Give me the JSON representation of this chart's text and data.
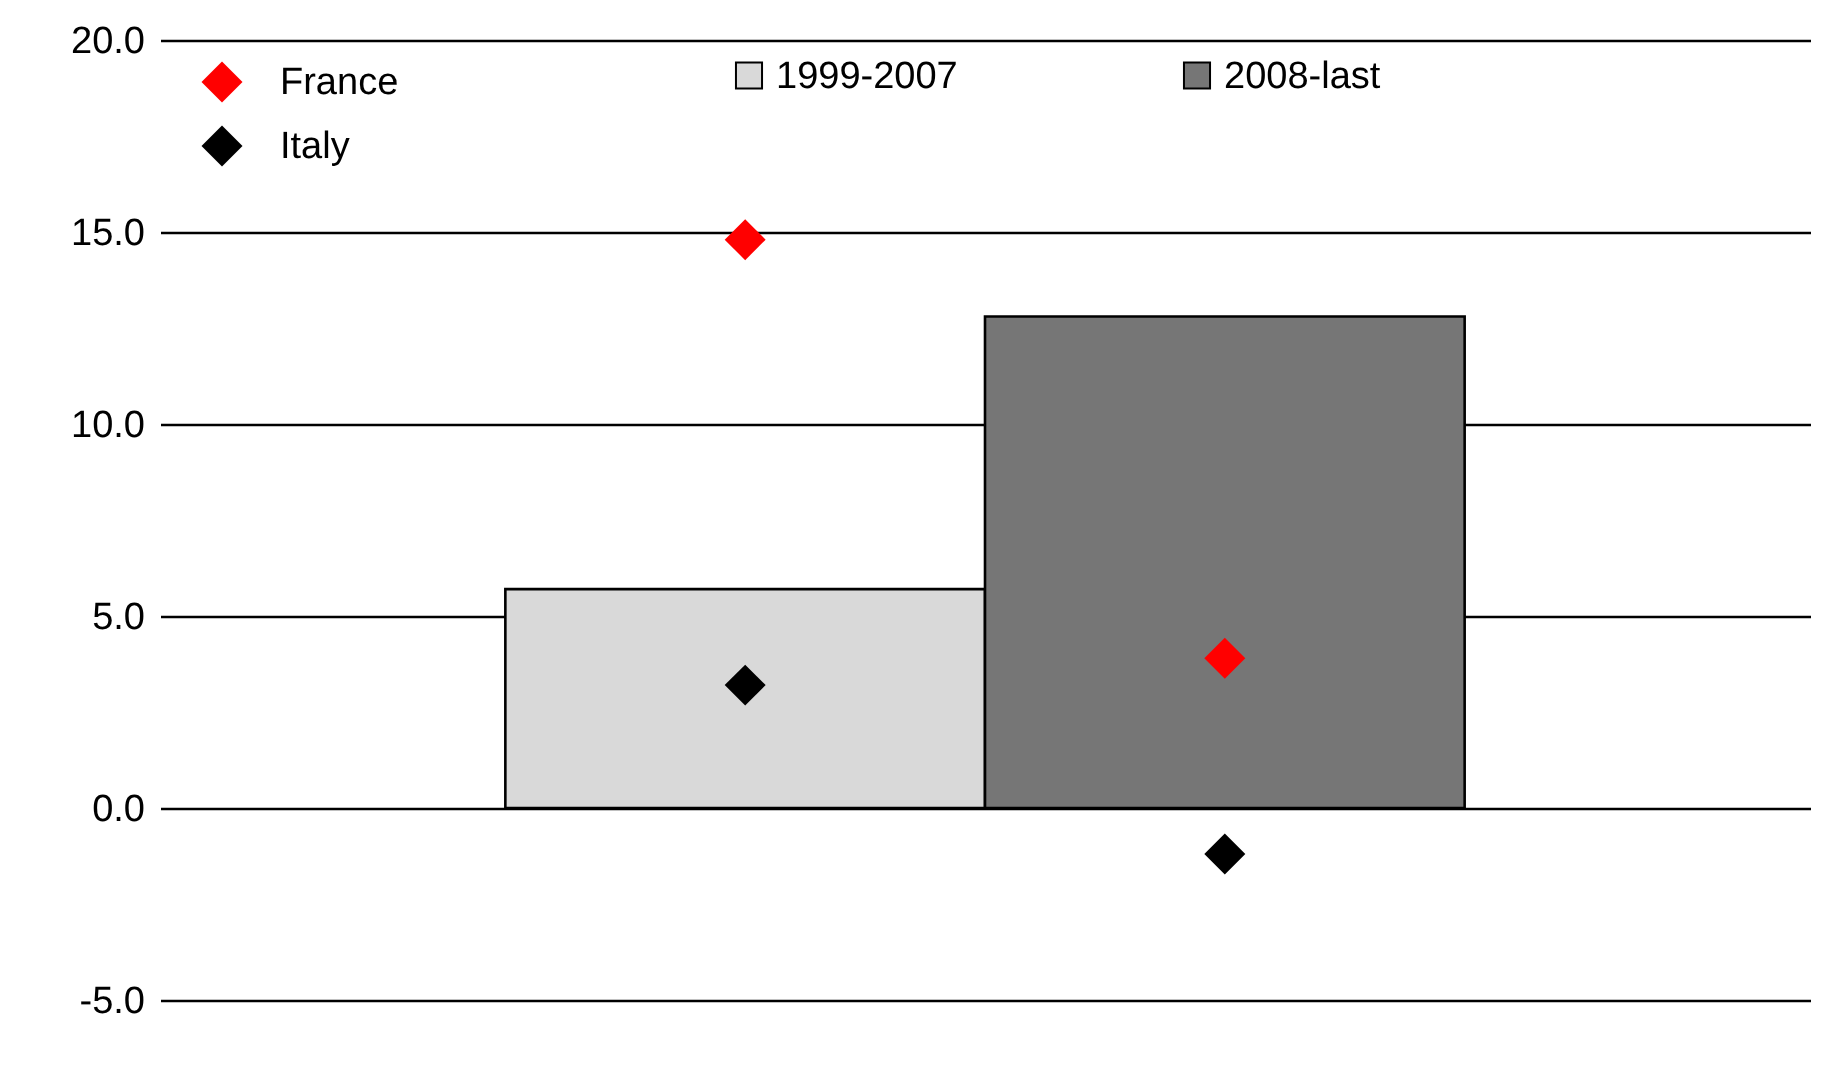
{
  "chart_data": {
    "type": "bar",
    "categories": [
      null,
      null
    ],
    "series": [
      {
        "name": "1999-2007",
        "color": "#d9d9d9",
        "values": [
          5.7,
          null
        ]
      },
      {
        "name": "2008-last",
        "color": "#767676",
        "values": [
          null,
          12.8
        ]
      },
      {
        "name": "France",
        "type": "scatter",
        "color": "#ff0000",
        "values": [
          14.8,
          3.9
        ]
      },
      {
        "name": "Italy",
        "type": "scatter",
        "color": "#000000",
        "values": [
          3.2,
          -1.2
        ]
      }
    ],
    "ylim": [
      -5,
      20
    ],
    "yticks": [
      {
        "value": -5,
        "label": "-5.0"
      },
      {
        "value": 0,
        "label": "0.0"
      },
      {
        "value": 5,
        "label": "5.0"
      },
      {
        "value": 10,
        "label": "10.0"
      },
      {
        "value": 15,
        "label": "15.0"
      },
      {
        "value": 20,
        "label": "20.0"
      }
    ],
    "grid": "y",
    "legend": "top left",
    "marker": "diamond"
  }
}
